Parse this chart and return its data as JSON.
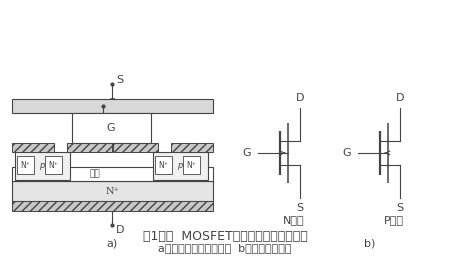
{
  "title1": "图1功率  MOSFET的结构和电气图形符号",
  "title2": "a）内部结构断面示意图  b）电气图形符号",
  "label_a": "a)",
  "label_b": "b)",
  "label_N": "N沟道",
  "label_P": "P沟道",
  "lc": "#444444",
  "fs_title": 9,
  "fs_label": 8,
  "fs_small": 6.5,
  "fs_tiny": 5.5
}
